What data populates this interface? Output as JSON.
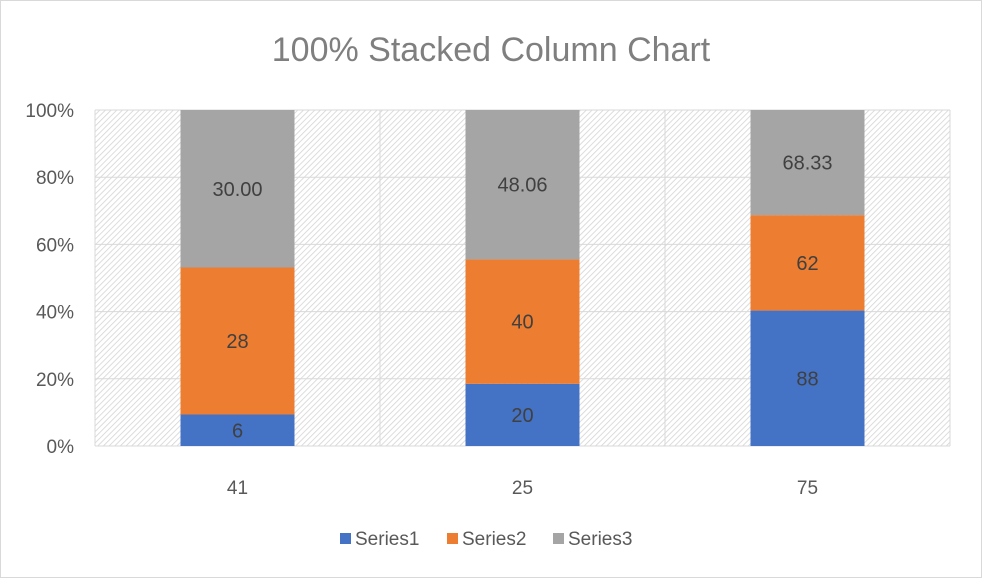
{
  "chart_data": {
    "type": "bar",
    "stacked": "percent",
    "title": "100% Stacked Column Chart",
    "categories": [
      "41",
      "25",
      "75"
    ],
    "series": [
      {
        "name": "Series1",
        "values": [
          6,
          20,
          88
        ],
        "labels": [
          "6",
          "20",
          "88"
        ],
        "color": "#4472c4"
      },
      {
        "name": "Series2",
        "values": [
          28,
          40,
          62
        ],
        "labels": [
          "28",
          "40",
          "62"
        ],
        "color": "#ed7d31"
      },
      {
        "name": "Series3",
        "values": [
          30.0,
          48.06,
          68.33
        ],
        "labels": [
          "30.00",
          "48.06",
          "68.33"
        ],
        "color": "#a5a5a5"
      }
    ],
    "yticks": [
      "0%",
      "20%",
      "40%",
      "60%",
      "80%",
      "100%"
    ],
    "ylim": [
      0,
      100
    ],
    "grid": true,
    "legend": "bottom"
  }
}
